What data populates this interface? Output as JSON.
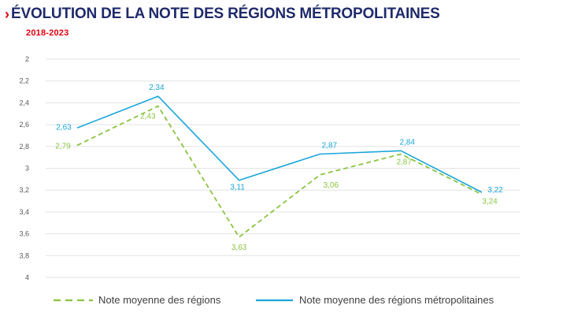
{
  "header": {
    "chevron": "›",
    "title": "ÉVOLUTION DE LA NOTE DES RÉGIONS MÉTROPOLITAINES",
    "subtitle": "2018-2023"
  },
  "colors": {
    "blue": "#1aa6d9",
    "green": "#8ac43f",
    "title": "#1f2a6b",
    "accent": "#e1000f"
  },
  "chart_data": {
    "type": "line",
    "title": "ÉVOLUTION DE LA NOTE DES RÉGIONS MÉTROPOLITAINES",
    "subtitle": "2018-2023",
    "xlabel": "",
    "ylabel": "",
    "ylim": [
      2,
      4
    ],
    "y_inverted": true,
    "y_ticks": [
      "2",
      "2,2",
      "2,4",
      "2,6",
      "2,8",
      "3",
      "3,2",
      "3,4",
      "3,6",
      "3,8",
      "4"
    ],
    "y_tick_values": [
      2,
      2.2,
      2.4,
      2.6,
      2.8,
      3,
      3.2,
      3.4,
      3.6,
      3.8,
      4
    ],
    "x": [
      0,
      1,
      2,
      3,
      4,
      5
    ],
    "grid": true,
    "legend_position": "bottom",
    "series": [
      {
        "name": "Note moyenne des régions",
        "style": "dashed",
        "color": "#8ac43f",
        "values": [
          2.79,
          2.43,
          3.63,
          3.06,
          2.87,
          3.24
        ],
        "labels": [
          "2,79",
          "2,43",
          "3,63",
          "3,06",
          "2,87",
          "3,24"
        ]
      },
      {
        "name": "Note moyenne des régions métropolitaines",
        "style": "solid",
        "color": "#1aa6d9",
        "values": [
          2.63,
          2.34,
          3.11,
          2.87,
          2.84,
          3.22
        ],
        "labels": [
          "2,63",
          "2,34",
          "3,11",
          "2,87",
          "2,84",
          "3,22"
        ]
      }
    ]
  }
}
